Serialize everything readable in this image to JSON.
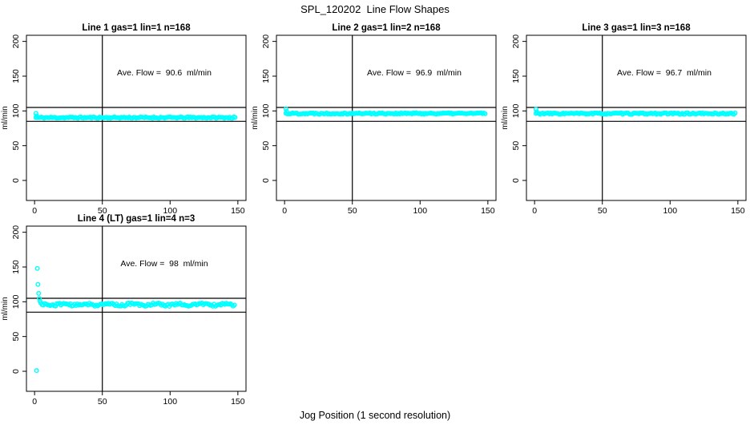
{
  "title": "SPL_120202  Line Flow Shapes",
  "xlabel": "Jog Position (1 second resolution)",
  "colors": {
    "points": "#00FFFF",
    "axis": "#000000",
    "background": "#FFFFFF"
  },
  "chart_data": [
    {
      "type": "scatter",
      "title": "Line 1 gas=1 lin=1 n=168",
      "ylabel": "ml/min",
      "annotation": "Ave. Flow =  90.6  ml/min",
      "ave_flow_ml_min": 90.6,
      "xlim": [
        0,
        150
      ],
      "ylim": [
        0,
        200
      ],
      "xticks": [
        0,
        50,
        100,
        150
      ],
      "yticks": [
        0,
        50,
        100,
        150,
        200
      ],
      "vline_x": 50,
      "hlines_y": [
        85,
        105
      ],
      "band": {
        "x_start": 1,
        "x_end": 148,
        "step": 1,
        "level": 90.4,
        "jitter": 1.1,
        "wave_amp": 0,
        "wave_len": 20,
        "seed": 11
      },
      "extra_points": [
        {
          "x": 1,
          "y": 96.5
        },
        {
          "x": 1.5,
          "y": 93
        }
      ]
    },
    {
      "type": "scatter",
      "title": "Line 2 gas=1 lin=2 n=168",
      "ylabel": "ml/min",
      "annotation": "Ave. Flow =  96.9  ml/min",
      "ave_flow_ml_min": 96.9,
      "xlim": [
        0,
        150
      ],
      "ylim": [
        0,
        200
      ],
      "xticks": [
        0,
        50,
        100,
        150
      ],
      "yticks": [
        0,
        50,
        100,
        150,
        200
      ],
      "vline_x": 50,
      "hlines_y": [
        85,
        105
      ],
      "band": {
        "x_start": 1,
        "x_end": 148,
        "step": 1,
        "level": 96.4,
        "jitter": 1.1,
        "wave_amp": 0,
        "wave_len": 20,
        "seed": 22
      },
      "extra_points": [
        {
          "x": 1,
          "y": 103
        },
        {
          "x": 1.5,
          "y": 99.5
        }
      ]
    },
    {
      "type": "scatter",
      "title": "Line 3 gas=1 lin=3 n=168",
      "ylabel": "ml/min",
      "annotation": "Ave. Flow =  96.7  ml/min",
      "ave_flow_ml_min": 96.7,
      "xlim": [
        0,
        150
      ],
      "ylim": [
        0,
        200
      ],
      "xticks": [
        0,
        50,
        100,
        150
      ],
      "yticks": [
        0,
        50,
        100,
        150,
        200
      ],
      "vline_x": 50,
      "hlines_y": [
        85,
        105
      ],
      "band": {
        "x_start": 1,
        "x_end": 148,
        "step": 1,
        "level": 96.2,
        "jitter": 1.1,
        "wave_amp": 0,
        "wave_len": 20,
        "seed": 33
      },
      "extra_points": [
        {
          "x": 1,
          "y": 102.5
        },
        {
          "x": 1.5,
          "y": 99
        }
      ]
    },
    {
      "type": "scatter",
      "title": "Line 4 (LT) gas=1 lin=4 n=3",
      "ylabel": "ml/min",
      "annotation": "Ave. Flow =  98  ml/min",
      "ave_flow_ml_min": 98,
      "xlim": [
        0,
        150
      ],
      "ylim": [
        0,
        200
      ],
      "xticks": [
        0,
        50,
        100,
        150
      ],
      "yticks": [
        0,
        50,
        100,
        150,
        200
      ],
      "vline_x": 50,
      "hlines_y": [
        85,
        105
      ],
      "band": {
        "x_start": 4.5,
        "x_end": 148,
        "step": 1,
        "level": 96,
        "jitter": 1.7,
        "wave_amp": 1.2,
        "wave_len": 17,
        "seed": 44
      },
      "extra_points": [
        {
          "x": 2,
          "y": 148
        },
        {
          "x": 2.5,
          "y": 125
        },
        {
          "x": 1.5,
          "y": 1
        },
        {
          "x": 3,
          "y": 112
        },
        {
          "x": 3.5,
          "y": 105
        },
        {
          "x": 4,
          "y": 101
        }
      ]
    }
  ],
  "layout_note": "2 x 3 grid of panels; positions filled: row1 col1-3, row2 col1"
}
